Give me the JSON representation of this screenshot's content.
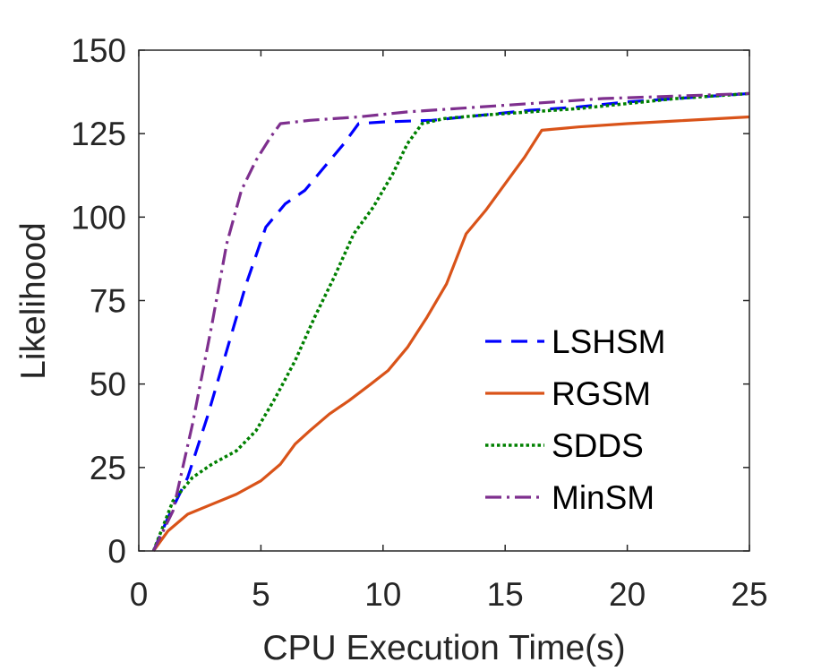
{
  "chart_data": {
    "type": "line",
    "title": "",
    "xlabel": "CPU Execution Time(s)",
    "ylabel": "Likelihood",
    "xlim": [
      0,
      25
    ],
    "ylim": [
      0,
      150
    ],
    "xticks": [
      0,
      5,
      10,
      15,
      20,
      25
    ],
    "yticks": [
      0,
      25,
      50,
      75,
      100,
      125,
      150
    ],
    "xtick_labels": [
      "0",
      "5",
      "10",
      "15",
      "20",
      "25"
    ],
    "ytick_labels": [
      "0",
      "25",
      "50",
      "75",
      "100",
      "125",
      "150"
    ],
    "grid": false,
    "legend_position": "lower-right",
    "series": [
      {
        "name": "LSHSM",
        "color": "#0000ff",
        "style": "dashed",
        "points": [
          [
            0.6,
            0
          ],
          [
            1.2,
            10
          ],
          [
            2.0,
            22
          ],
          [
            2.8,
            40
          ],
          [
            3.6,
            60
          ],
          [
            4.4,
            80
          ],
          [
            5.2,
            97
          ],
          [
            6.0,
            104
          ],
          [
            6.8,
            108
          ],
          [
            7.6,
            115
          ],
          [
            8.4,
            122
          ],
          [
            9.0,
            128
          ],
          [
            10,
            128.5
          ],
          [
            12,
            129
          ],
          [
            14,
            130.5
          ],
          [
            16,
            132
          ],
          [
            18,
            133
          ],
          [
            20,
            134.5
          ],
          [
            22,
            135.5
          ],
          [
            25,
            137
          ]
        ]
      },
      {
        "name": "RGSM",
        "color": "#d95319",
        "style": "solid",
        "points": [
          [
            0.6,
            0
          ],
          [
            1.2,
            6
          ],
          [
            2.0,
            11
          ],
          [
            3.0,
            14
          ],
          [
            4.0,
            17
          ],
          [
            5.0,
            21
          ],
          [
            5.8,
            26
          ],
          [
            6.4,
            32
          ],
          [
            7.0,
            36
          ],
          [
            7.8,
            41
          ],
          [
            8.6,
            45
          ],
          [
            9.5,
            50
          ],
          [
            10.2,
            54
          ],
          [
            11.0,
            61
          ],
          [
            11.8,
            70
          ],
          [
            12.6,
            80
          ],
          [
            13.4,
            95
          ],
          [
            14.2,
            102
          ],
          [
            15.0,
            110
          ],
          [
            15.8,
            118
          ],
          [
            16.5,
            126
          ],
          [
            18,
            127
          ],
          [
            20,
            128
          ],
          [
            22,
            128.8
          ],
          [
            25,
            130
          ]
        ]
      },
      {
        "name": "SDDS",
        "color": "#008000",
        "style": "dotted",
        "points": [
          [
            0.6,
            0
          ],
          [
            1.4,
            15
          ],
          [
            2.2,
            22
          ],
          [
            3.0,
            26
          ],
          [
            4.0,
            30
          ],
          [
            4.8,
            36
          ],
          [
            5.6,
            46
          ],
          [
            6.4,
            57
          ],
          [
            7.2,
            70
          ],
          [
            8.0,
            82
          ],
          [
            8.8,
            95
          ],
          [
            9.6,
            103
          ],
          [
            10.4,
            113
          ],
          [
            11.0,
            122
          ],
          [
            11.6,
            128
          ],
          [
            12.5,
            129.5
          ],
          [
            14,
            130.5
          ],
          [
            16,
            131.5
          ],
          [
            18,
            132.5
          ],
          [
            20,
            134
          ],
          [
            22,
            135.5
          ],
          [
            25,
            137
          ]
        ]
      },
      {
        "name": "MinSM",
        "color": "#7e2f8e",
        "style": "dashdot",
        "points": [
          [
            0.6,
            0
          ],
          [
            1.4,
            12
          ],
          [
            2.2,
            38
          ],
          [
            3.0,
            68
          ],
          [
            3.6,
            92
          ],
          [
            4.2,
            108
          ],
          [
            4.8,
            117
          ],
          [
            5.4,
            124
          ],
          [
            5.8,
            128
          ],
          [
            7,
            129
          ],
          [
            9,
            130
          ],
          [
            11,
            131.5
          ],
          [
            13,
            132.5
          ],
          [
            15,
            133.5
          ],
          [
            17,
            134.5
          ],
          [
            19,
            135.5
          ],
          [
            21,
            136
          ],
          [
            23,
            136.5
          ],
          [
            25,
            137
          ]
        ]
      }
    ]
  }
}
